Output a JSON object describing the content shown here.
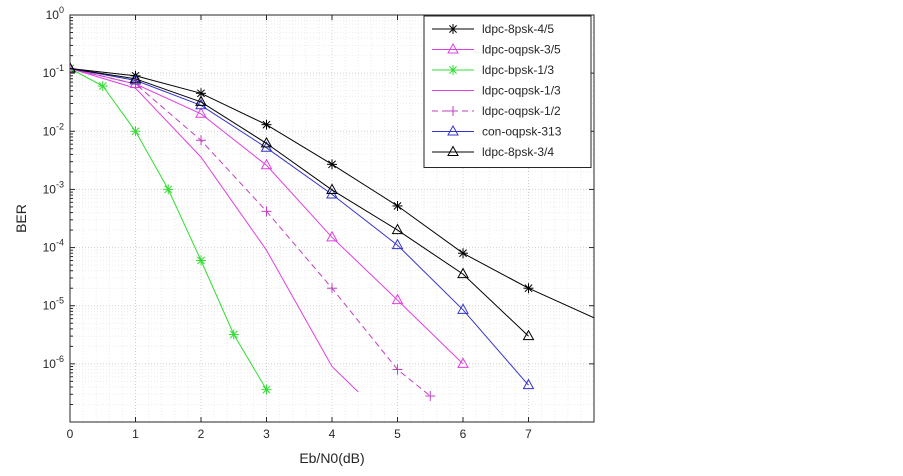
{
  "chart_data": {
    "type": "line",
    "title": "",
    "xlabel": "Eb/N0(dB)",
    "ylabel": "BER",
    "xlim": [
      0,
      8
    ],
    "ylim_log10": [
      -7,
      0
    ],
    "yscale": "log",
    "grid": true,
    "x_ticks": [
      "0",
      "1",
      "2",
      "3",
      "4",
      "5",
      "6",
      "7"
    ],
    "y_ticks": [
      {
        "base": "10",
        "exp": "0"
      },
      {
        "base": "10",
        "exp": "-1"
      },
      {
        "base": "10",
        "exp": "-2"
      },
      {
        "base": "10",
        "exp": "-3"
      },
      {
        "base": "10",
        "exp": "-4"
      },
      {
        "base": "10",
        "exp": "-5"
      },
      {
        "base": "10",
        "exp": "-6"
      }
    ],
    "legend_position": "top-right",
    "series": [
      {
        "name": "ldpc-8psk-4/5",
        "color": "#000000",
        "marker": "asterisk",
        "dash": "solid",
        "x": [
          0,
          1,
          2,
          3,
          4,
          5,
          6,
          7,
          8
        ],
        "y": [
          0.12,
          0.09,
          0.045,
          0.013,
          0.0027,
          0.00052,
          8e-05,
          2e-05,
          6.2e-06
        ]
      },
      {
        "name": "ldpc-oqpsk-3/5",
        "color": "#e040e0",
        "marker": "triangle",
        "dash": "solid",
        "x": [
          0,
          1,
          2,
          3,
          4,
          5,
          6
        ],
        "y": [
          0.12,
          0.065,
          0.02,
          0.0026,
          0.00015,
          1.25e-05,
          1e-06
        ]
      },
      {
        "name": "ldpc-bpsk-1/3",
        "color": "#33dd33",
        "marker": "asterisk",
        "dash": "solid",
        "x": [
          0,
          0.5,
          1,
          1.5,
          2,
          2.5,
          3
        ],
        "y": [
          0.12,
          0.06,
          0.01,
          0.001,
          6e-05,
          3.2e-06,
          3.6e-07
        ]
      },
      {
        "name": "ldpc-oqpsk-1/3",
        "color": "#e040e0",
        "marker": "none",
        "dash": "solid",
        "x": [
          0,
          1,
          2,
          3,
          4,
          4.4
        ],
        "y": [
          0.12,
          0.055,
          0.0036,
          9e-05,
          9e-07,
          3.3e-07
        ]
      },
      {
        "name": "ldpc-oqpsk-1/2",
        "color": "#c040c0",
        "marker": "plus",
        "dash": "dashed",
        "x": [
          0,
          1,
          2,
          3,
          4,
          5,
          5.5
        ],
        "y": [
          0.12,
          0.065,
          0.007,
          0.00042,
          2e-05,
          8e-07,
          2.8e-07
        ]
      },
      {
        "name": "con-oqpsk-313",
        "color": "#3333cc",
        "marker": "triangle",
        "dash": "solid",
        "x": [
          0,
          1,
          2,
          3,
          4,
          5,
          6,
          7
        ],
        "y": [
          0.12,
          0.075,
          0.028,
          0.0052,
          0.00082,
          0.00011,
          8.5e-06,
          4.3e-07
        ]
      },
      {
        "name": "ldpc-8psk-3/4",
        "color": "#000000",
        "marker": "triangle",
        "dash": "solid",
        "x": [
          0,
          1,
          2,
          3,
          4,
          5,
          6,
          7
        ],
        "y": [
          0.12,
          0.08,
          0.032,
          0.0062,
          0.00098,
          0.0002,
          3.5e-05,
          3e-06
        ]
      }
    ]
  }
}
